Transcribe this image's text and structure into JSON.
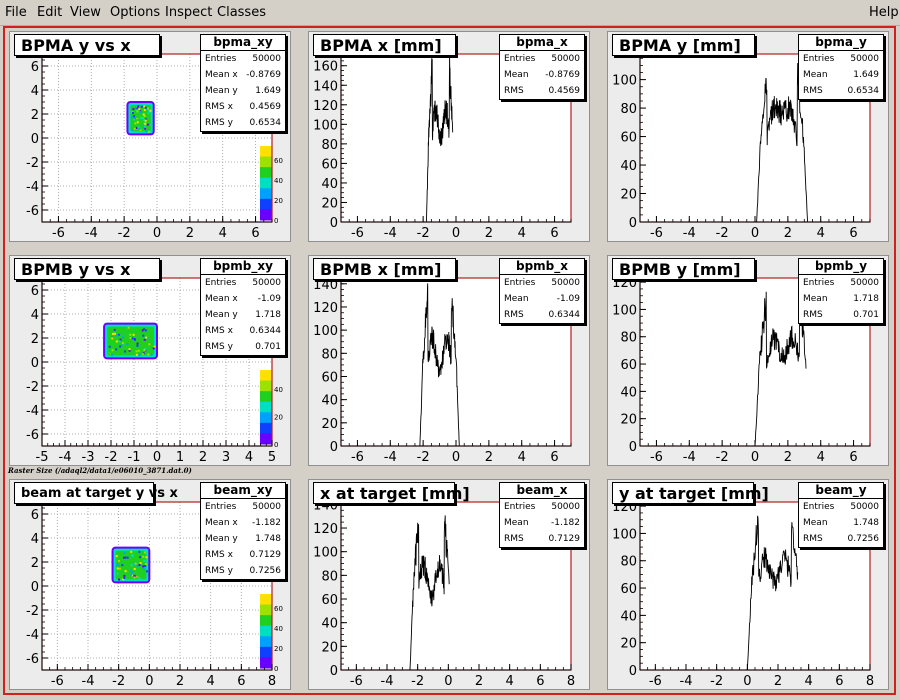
{
  "menu": {
    "file": "File",
    "edit": "Edit",
    "view": "View",
    "options": "Options",
    "inspect": "Inspect",
    "classes": "Classes",
    "help": "Help"
  },
  "caption": "Raster Size (/adaql2/data1/e06010_3871.dat.0)",
  "colors": {
    "frame": "#d02020",
    "axis_frame": "#b02020",
    "palette": [
      "#6a00ff",
      "#1040ff",
      "#00a0ff",
      "#00e0c0",
      "#20d020",
      "#a0e000",
      "#ffe000"
    ]
  },
  "pads": [
    {
      "title": "BPMA y vs x",
      "kind": "scatter2d",
      "stats": {
        "name": "bpma_xy",
        "rows": [
          [
            "Entries",
            "50000"
          ],
          [
            "Mean x",
            "-0.8769"
          ],
          [
            "Mean y",
            "1.649"
          ],
          [
            "RMS x",
            "0.4569"
          ],
          [
            "RMS y",
            "0.6534"
          ]
        ]
      },
      "chart_data": {
        "type": "heatmap",
        "xlim": [
          -7,
          7
        ],
        "ylim": [
          -7,
          7
        ],
        "xticks": [
          "-6",
          "-4",
          "-2",
          "0",
          "2",
          "4",
          "6"
        ],
        "yticks": [
          "-6",
          "-4",
          "-2",
          "0",
          "2",
          "4",
          "6"
        ],
        "xtickvals": [
          -6,
          -4,
          -2,
          0,
          2,
          4,
          6
        ],
        "ytickvals": [
          -6,
          -4,
          -2,
          0,
          2,
          4,
          6
        ],
        "grid": true,
        "cloud": {
          "x0": -1.8,
          "x1": -0.2,
          "y0": 0.3,
          "y1": 3.0
        },
        "zticks": [
          "0",
          "20",
          "40",
          "60"
        ]
      }
    },
    {
      "title": "BPMA x [mm]",
      "kind": "hist",
      "stats": {
        "name": "bpma_x",
        "rows": [
          [
            "Entries",
            "50000"
          ],
          [
            "Mean",
            "-0.8769"
          ],
          [
            "RMS",
            "0.4569"
          ]
        ]
      },
      "chart_data": {
        "type": "bar",
        "xlim": [
          -7,
          7
        ],
        "ylim": [
          0,
          172
        ],
        "xticks": [
          "-6",
          "-4",
          "-2",
          "0",
          "2",
          "4",
          "6"
        ],
        "xtickvals": [
          -6,
          -4,
          -2,
          0,
          2,
          4,
          6
        ],
        "yticks": [
          "0",
          "20",
          "40",
          "60",
          "80",
          "100",
          "120",
          "140",
          "160"
        ],
        "ytickvals": [
          0,
          20,
          40,
          60,
          80,
          100,
          120,
          140,
          160
        ],
        "shape": {
          "x0": -1.8,
          "x1": -0.05,
          "peak": 170,
          "dip": 100
        }
      }
    },
    {
      "title": "BPMA y [mm]",
      "kind": "hist",
      "stats": {
        "name": "bpma_y",
        "rows": [
          [
            "Entries",
            "50000"
          ],
          [
            "Mean",
            "1.649"
          ],
          [
            "RMS",
            "0.6534"
          ]
        ]
      },
      "chart_data": {
        "type": "bar",
        "xlim": [
          -7,
          7
        ],
        "ylim": [
          0,
          118
        ],
        "xticks": [
          "-6",
          "-4",
          "-2",
          "0",
          "2",
          "4",
          "6"
        ],
        "xtickvals": [
          -6,
          -4,
          -2,
          0,
          2,
          4,
          6
        ],
        "yticks": [
          "0",
          "20",
          "40",
          "60",
          "80",
          "100"
        ],
        "ytickvals": [
          0,
          20,
          40,
          60,
          80,
          100
        ],
        "shape": {
          "x0": 0.1,
          "x1": 3.2,
          "peak": 110,
          "dip": 88
        }
      }
    },
    {
      "title": "BPMB y vs x",
      "kind": "scatter2d",
      "stats": {
        "name": "bpmb_xy",
        "rows": [
          [
            "Entries",
            "50000"
          ],
          [
            "Mean x",
            "-1.09"
          ],
          [
            "Mean y",
            "1.718"
          ],
          [
            "RMS x",
            "0.6344"
          ],
          [
            "RMS y",
            "0.701"
          ]
        ]
      },
      "chart_data": {
        "type": "heatmap",
        "xlim": [
          -5,
          5
        ],
        "ylim": [
          -7,
          7
        ],
        "xticks": [
          "-5",
          "-4",
          "-3",
          "-2",
          "-1",
          "0",
          "1",
          "2",
          "3",
          "4",
          "5"
        ],
        "yticks": [
          "-6",
          "-4",
          "-2",
          "0",
          "2",
          "4",
          "6"
        ],
        "xtickvals": [
          -5,
          -4,
          -3,
          -2,
          -1,
          0,
          1,
          2,
          3,
          4,
          5
        ],
        "ytickvals": [
          -6,
          -4,
          -2,
          0,
          2,
          4,
          6
        ],
        "grid": true,
        "cloud": {
          "x0": -2.3,
          "x1": 0.0,
          "y0": 0.3,
          "y1": 3.2
        },
        "zticks": [
          "0",
          "20",
          "40"
        ]
      }
    },
    {
      "title": "BPMB x [mm]",
      "kind": "hist",
      "stats": {
        "name": "bpmb_x",
        "rows": [
          [
            "Entries",
            "50000"
          ],
          [
            "Mean",
            "-1.09"
          ],
          [
            "RMS",
            "0.6344"
          ]
        ]
      },
      "chart_data": {
        "type": "bar",
        "xlim": [
          -7,
          7
        ],
        "ylim": [
          0,
          145
        ],
        "xticks": [
          "-6",
          "-4",
          "-2",
          "0",
          "2",
          "4",
          "6"
        ],
        "xtickvals": [
          -6,
          -4,
          -2,
          0,
          2,
          4,
          6
        ],
        "yticks": [
          "0",
          "20",
          "40",
          "60",
          "80",
          "100",
          "120",
          "140"
        ],
        "ytickvals": [
          0,
          20,
          40,
          60,
          80,
          100,
          120,
          140
        ],
        "shape": {
          "x0": -2.2,
          "x1": 0.2,
          "peak": 140,
          "dip": 75
        }
      }
    },
    {
      "title": "BPMB y [mm]",
      "kind": "hist",
      "stats": {
        "name": "bpmb_y",
        "rows": [
          [
            "Entries",
            "50000"
          ],
          [
            "Mean",
            "1.718"
          ],
          [
            "RMS",
            "0.701"
          ]
        ]
      },
      "chart_data": {
        "type": "bar",
        "xlim": [
          -7,
          7
        ],
        "ylim": [
          0,
          123
        ],
        "xticks": [
          "-6",
          "-4",
          "-2",
          "0",
          "2",
          "4",
          "6"
        ],
        "xtickvals": [
          -6,
          -4,
          -2,
          0,
          2,
          4,
          6
        ],
        "yticks": [
          "0",
          "20",
          "40",
          "60",
          "80",
          "100",
          "120"
        ],
        "ytickvals": [
          0,
          20,
          40,
          60,
          80,
          100,
          120
        ],
        "shape": {
          "x0": 0.0,
          "x1": 3.4,
          "peak": 115,
          "dip": 75
        }
      }
    },
    {
      "title": "beam at target y vs x",
      "kind": "scatter2d",
      "small": true,
      "stats": {
        "name": "beam_xy",
        "rows": [
          [
            "Entries",
            "50000"
          ],
          [
            "Mean x",
            "-1.182"
          ],
          [
            "Mean y",
            "1.748"
          ],
          [
            "RMS x",
            "0.7129"
          ],
          [
            "RMS y",
            "0.7256"
          ]
        ]
      },
      "chart_data": {
        "type": "heatmap",
        "xlim": [
          -7,
          8
        ],
        "ylim": [
          -7,
          7
        ],
        "xticks": [
          "-6",
          "-4",
          "-2",
          "0",
          "2",
          "4",
          "6",
          "8"
        ],
        "yticks": [
          "-6",
          "-4",
          "-2",
          "0",
          "2",
          "4",
          "6"
        ],
        "xtickvals": [
          -6,
          -4,
          -2,
          0,
          2,
          4,
          6,
          8
        ],
        "ytickvals": [
          -6,
          -4,
          -2,
          0,
          2,
          4,
          6
        ],
        "grid": true,
        "cloud": {
          "x0": -2.4,
          "x1": 0.0,
          "y0": 0.3,
          "y1": 3.2
        },
        "zticks": [
          "0",
          "20",
          "40",
          "60"
        ]
      }
    },
    {
      "title": "x at target [mm]",
      "kind": "hist",
      "stats": {
        "name": "beam_x",
        "rows": [
          [
            "Entries",
            "50000"
          ],
          [
            "Mean",
            "-1.182"
          ],
          [
            "RMS",
            "0.7129"
          ]
        ]
      },
      "chart_data": {
        "type": "bar",
        "xlim": [
          -7,
          8
        ],
        "ylim": [
          0,
          142
        ],
        "xticks": [
          "-6",
          "-4",
          "-2",
          "0",
          "2",
          "4",
          "6",
          "8"
        ],
        "xtickvals": [
          -6,
          -4,
          -2,
          0,
          2,
          4,
          6,
          8
        ],
        "yticks": [
          "0",
          "20",
          "40",
          "60",
          "80",
          "100",
          "120",
          "140"
        ],
        "ytickvals": [
          0,
          20,
          40,
          60,
          80,
          100,
          120,
          140
        ],
        "shape": {
          "x0": -2.5,
          "x1": 0.3,
          "peak": 135,
          "dip": 70
        }
      }
    },
    {
      "title": "y at target [mm]",
      "kind": "hist",
      "stats": {
        "name": "beam_y",
        "rows": [
          [
            "Entries",
            "50000"
          ],
          [
            "Mean",
            "1.748"
          ],
          [
            "RMS",
            "0.7256"
          ]
        ]
      },
      "chart_data": {
        "type": "bar",
        "xlim": [
          -7,
          8
        ],
        "ylim": [
          0,
          123
        ],
        "xticks": [
          "-6",
          "-4",
          "-2",
          "0",
          "2",
          "4",
          "6",
          "8"
        ],
        "xtickvals": [
          -6,
          -4,
          -2,
          0,
          2,
          4,
          6,
          8
        ],
        "yticks": [
          "0",
          "20",
          "40",
          "60",
          "80",
          "100",
          "120"
        ],
        "ytickvals": [
          0,
          20,
          40,
          60,
          80,
          100,
          120
        ],
        "shape": {
          "x0": 0.0,
          "x1": 3.6,
          "peak": 120,
          "dip": 75
        }
      }
    }
  ]
}
